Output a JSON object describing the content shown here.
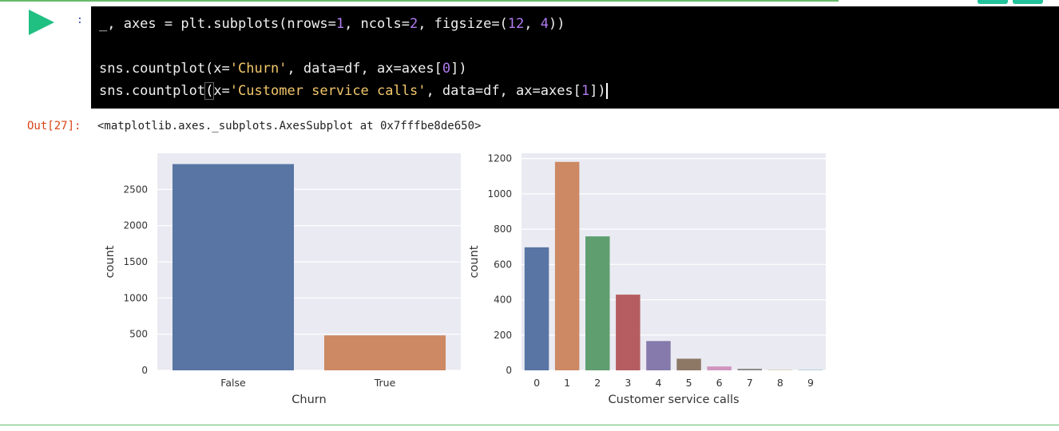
{
  "in_prompt": ":",
  "code": {
    "line1": {
      "a": "_, axes = plt.subplots(nrows=",
      "b": "1",
      "c": ", ncols=",
      "d": "2",
      "e": ", figsize=(",
      "f": "12",
      "g": ", ",
      "h": "4",
      "i": "))"
    },
    "line2": {
      "a": "sns.countplot(x=",
      "b": "'Churn'",
      "c": ", data=df, ax=axes[",
      "d": "0",
      "e": "])"
    },
    "line3": {
      "a": "sns.countplot",
      "b": "(",
      "c": "x=",
      "d": "'Customer service calls'",
      "e": ", data=df, ax=axes[",
      "f": "1",
      "g": "])"
    }
  },
  "output": {
    "prompt": "Out[27]:",
    "text": "<matplotlib.axes._subplots.AxesSubplot at 0x7fffbe8de650>"
  },
  "chart_data": [
    {
      "type": "bar",
      "categories": [
        "False",
        "True"
      ],
      "values": [
        2850,
        483
      ],
      "colors": [
        "#5875a4",
        "#cc8963"
      ],
      "xlabel": "Churn",
      "ylabel": "count",
      "ylim": [
        0,
        3000
      ],
      "yticks": [
        0,
        500,
        1000,
        1500,
        2000,
        2500
      ],
      "grid": true
    },
    {
      "type": "bar",
      "categories": [
        "0",
        "1",
        "2",
        "3",
        "4",
        "5",
        "6",
        "7",
        "8",
        "9"
      ],
      "values": [
        697,
        1181,
        759,
        429,
        166,
        66,
        22,
        9,
        2,
        2
      ],
      "colors": [
        "#5875a4",
        "#cc8963",
        "#5f9e6e",
        "#b55d60",
        "#857aab",
        "#8d7866",
        "#d095bf",
        "#8c8c8c",
        "#c1b37f",
        "#71aec0"
      ],
      "xlabel": "Customer service calls",
      "ylabel": "count",
      "ylim": [
        0,
        1230
      ],
      "yticks": [
        0,
        200,
        400,
        600,
        800,
        1000,
        1200
      ],
      "grid": true
    }
  ]
}
